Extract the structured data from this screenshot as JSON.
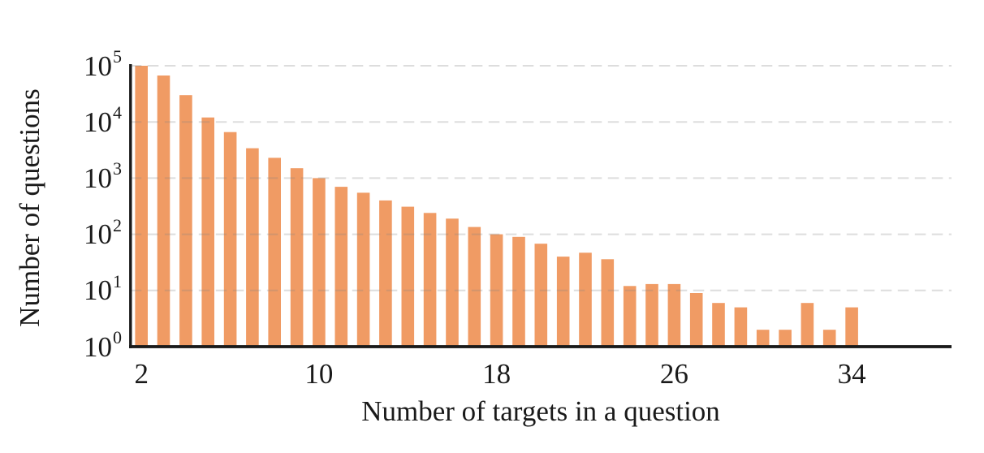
{
  "chart_data": {
    "type": "bar",
    "title": "",
    "xlabel": "Number of targets in a question",
    "ylabel": "Number of questions",
    "yscale": "log",
    "ylim": [
      1,
      100000
    ],
    "grid": "horizontal-dashed",
    "legend": "none",
    "bar_color": "#F09B64",
    "axis_color": "#1a1a1a",
    "gridline_color": "#DDDDDD",
    "x": [
      2,
      3,
      4,
      5,
      6,
      7,
      8,
      9,
      10,
      11,
      12,
      13,
      14,
      15,
      16,
      17,
      18,
      19,
      20,
      21,
      22,
      23,
      24,
      25,
      26,
      27,
      28,
      29,
      30,
      31,
      32,
      33,
      34
    ],
    "values": [
      100000,
      67000,
      30000,
      12000,
      6600,
      3400,
      2300,
      1500,
      1000,
      700,
      550,
      400,
      310,
      240,
      190,
      135,
      100,
      90,
      68,
      40,
      47,
      36,
      12,
      13,
      13,
      9,
      6,
      5,
      2,
      2,
      6,
      2,
      5
    ],
    "xticks": [
      2,
      10,
      18,
      26,
      34
    ],
    "ytick_exponents": [
      0,
      1,
      2,
      3,
      4,
      5
    ],
    "ytick_base": "10"
  }
}
